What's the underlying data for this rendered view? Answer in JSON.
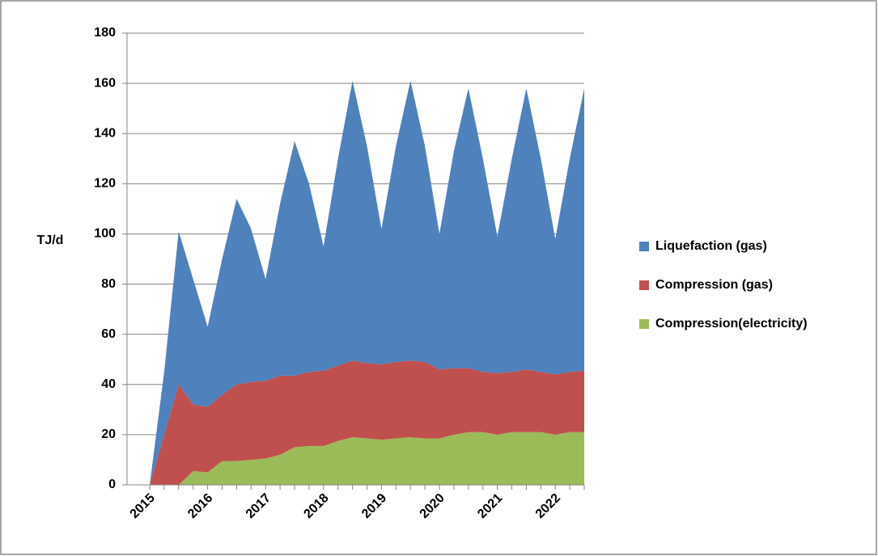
{
  "chart_data": {
    "type": "stacked-area",
    "y_label": "TJ/d",
    "categories": [
      "2015",
      null,
      null,
      null,
      "2016",
      null,
      null,
      null,
      "2017",
      null,
      null,
      null,
      "2018",
      null,
      null,
      null,
      "2019",
      null,
      null,
      null,
      "2020",
      null,
      null,
      null,
      "2021",
      null,
      null,
      null,
      "2022",
      null,
      null
    ],
    "series": [
      {
        "name": "Compression(electricity)",
        "color": "#9bbb59",
        "values": [
          0,
          0,
          0,
          5.5,
          5,
          9.5,
          9.5,
          10,
          10.5,
          12,
          15,
          15.5,
          15.5,
          17.5,
          19,
          18.5,
          18,
          18.5,
          19,
          18.5,
          18.5,
          20,
          21,
          21,
          20,
          21,
          21,
          21,
          20,
          21,
          21
        ]
      },
      {
        "name": "Compression (gas)",
        "color": "#c0504d",
        "values": [
          0,
          20,
          40,
          26.5,
          26,
          26.5,
          30.5,
          31,
          31,
          31.5,
          28.5,
          29.5,
          30,
          30,
          30.5,
          30,
          30,
          30.5,
          30.5,
          30.5,
          27.5,
          26.5,
          25.5,
          24,
          24.5,
          24,
          25,
          24,
          24,
          24,
          24.5
        ]
      },
      {
        "name": "Liquefaction (gas)",
        "color": "#4f81bd",
        "values": [
          0,
          25,
          61,
          50,
          32,
          54,
          74,
          61,
          40.5,
          68.5,
          93.5,
          75,
          49.5,
          82.5,
          111.5,
          86.5,
          54,
          86,
          111.5,
          86,
          54,
          86.5,
          111.5,
          85,
          54.5,
          85,
          112,
          85,
          54,
          85,
          112.5
        ]
      }
    ],
    "ylim": [
      0,
      180
    ],
    "yticks": [
      0,
      20,
      40,
      60,
      80,
      100,
      120,
      140,
      160,
      180
    ],
    "grid": true,
    "legend": "right"
  }
}
